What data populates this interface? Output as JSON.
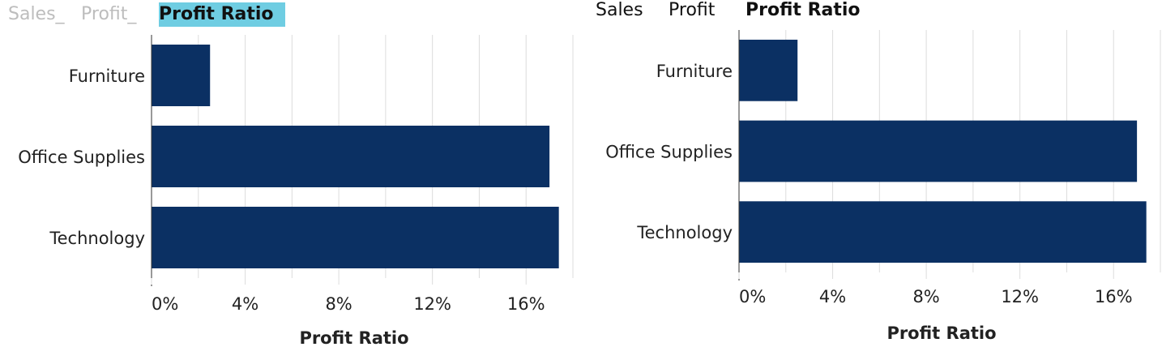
{
  "panels": [
    {
      "tabs": [
        {
          "label": "Sales_",
          "active": false
        },
        {
          "label": "Profit_",
          "active": false
        },
        {
          "label": "Profit Ratio",
          "active": true
        }
      ]
    },
    {
      "tabs": [
        {
          "label": "Sales",
          "active": false
        },
        {
          "label": "Profit",
          "active": false
        },
        {
          "label": "Profit Ratio",
          "active": true
        }
      ]
    }
  ],
  "colors": {
    "bar": "#0b3063",
    "active_tab_bg": "#6fcde2",
    "grid": "#dcdcdc",
    "axis": "#333333"
  },
  "chart_data": [
    {
      "type": "bar",
      "orientation": "horizontal",
      "categories": [
        "Furniture",
        "Office Supplies",
        "Technology"
      ],
      "values": [
        2.5,
        17.0,
        17.4
      ],
      "unit": "%",
      "xlabel": "Profit Ratio",
      "xlim": [
        0,
        18
      ],
      "xticks": [
        "0%",
        "4%",
        "8%",
        "12%",
        "16%"
      ],
      "grid": true
    },
    {
      "type": "bar",
      "orientation": "horizontal",
      "categories": [
        "Furniture",
        "Office Supplies",
        "Technology"
      ],
      "values": [
        2.5,
        17.0,
        17.4
      ],
      "unit": "%",
      "xlabel": "Profit Ratio",
      "xlim": [
        0,
        18
      ],
      "xticks": [
        "0%",
        "4%",
        "8%",
        "12%",
        "16%"
      ],
      "grid": true
    }
  ]
}
